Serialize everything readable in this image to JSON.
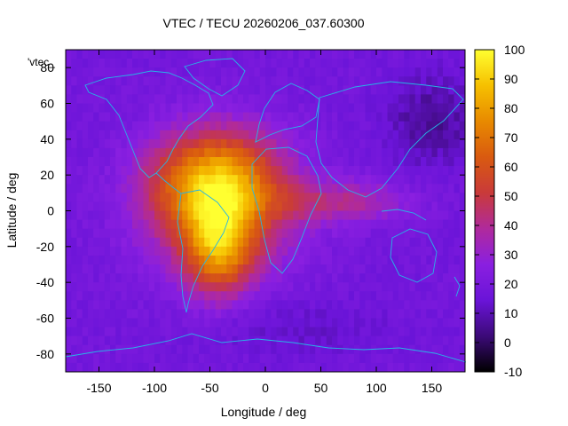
{
  "chart_data": {
    "type": "heatmap",
    "title": "VTEC / TECU 20260206_037.60300",
    "xlabel": "Longitude / deg",
    "ylabel": "Latitude / deg",
    "xlim": [
      -180,
      180
    ],
    "ylim": [
      -90,
      90
    ],
    "x_ticks": [
      -150,
      -100,
      -50,
      0,
      50,
      100,
      150
    ],
    "y_ticks": [
      -80,
      -60,
      -40,
      -20,
      0,
      20,
      40,
      60,
      80
    ],
    "colorbar": {
      "range": [
        -10,
        100
      ],
      "ticks": [
        -10,
        0,
        10,
        20,
        30,
        40,
        50,
        60,
        70,
        80,
        90,
        100
      ],
      "stops": [
        "#000000",
        "#3c0a78",
        "#6a14d8",
        "#8a1fe0",
        "#b02a9c",
        "#c93a3a",
        "#d95a10",
        "#e88a00",
        "#f6c000",
        "#ffff30"
      ]
    },
    "key_entry": "'vtec_",
    "grid": false,
    "field_description_peaks": [
      {
        "lon": -50,
        "lat": 20,
        "vtec": 80
      },
      {
        "lon": -45,
        "lat": -25,
        "vtec": 78
      },
      {
        "lon": -20,
        "lat": 20,
        "vtec": 75
      }
    ],
    "background_level": 18
  },
  "colors": {
    "coastline": "#26b5e6",
    "axis": "#000000"
  }
}
